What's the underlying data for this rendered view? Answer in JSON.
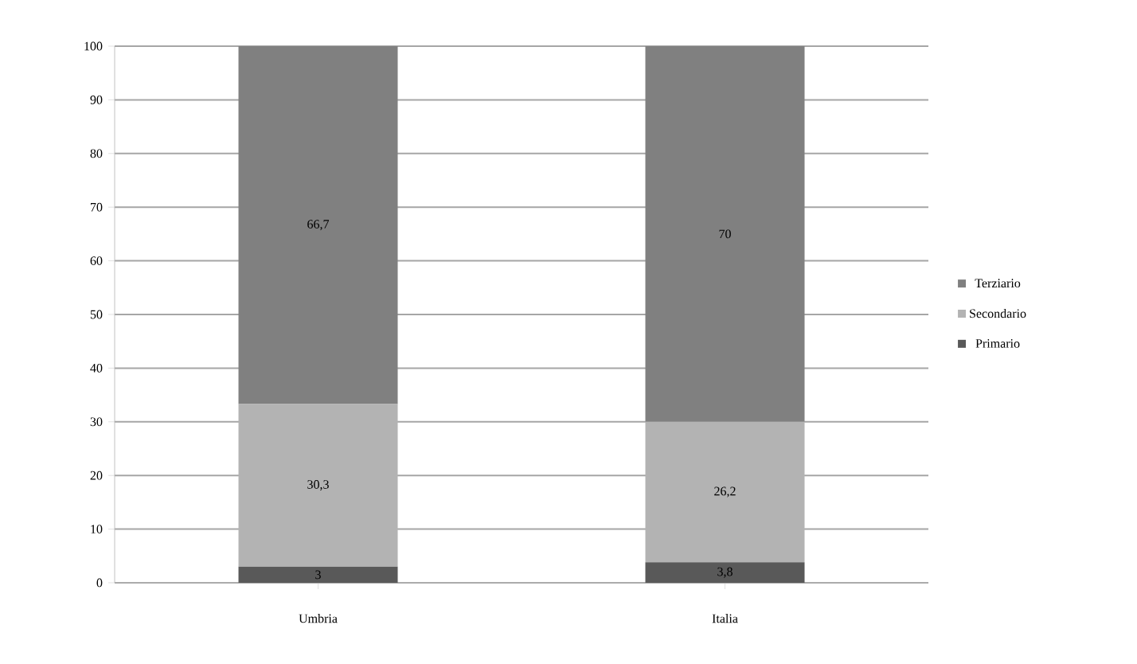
{
  "chart_data": {
    "type": "bar",
    "stacked": true,
    "categories": [
      "Umbria",
      "Italia"
    ],
    "series": [
      {
        "name": "Primario",
        "color": "#595959",
        "values": [
          3,
          3.8
        ],
        "value_labels": [
          "3",
          "3,8"
        ]
      },
      {
        "name": "Secondario",
        "color": "#b3b3b3",
        "values": [
          30.3,
          26.2
        ],
        "value_labels": [
          "30,3",
          "26,2"
        ]
      },
      {
        "name": "Terziario",
        "color": "#808080",
        "values": [
          66.7,
          70
        ],
        "value_labels": [
          "66,7",
          "70"
        ]
      }
    ],
    "ylim": [
      0,
      100
    ],
    "yticks": [
      0,
      10,
      20,
      30,
      40,
      50,
      60,
      70,
      80,
      90,
      100
    ],
    "grid": "y",
    "legend": "right"
  }
}
